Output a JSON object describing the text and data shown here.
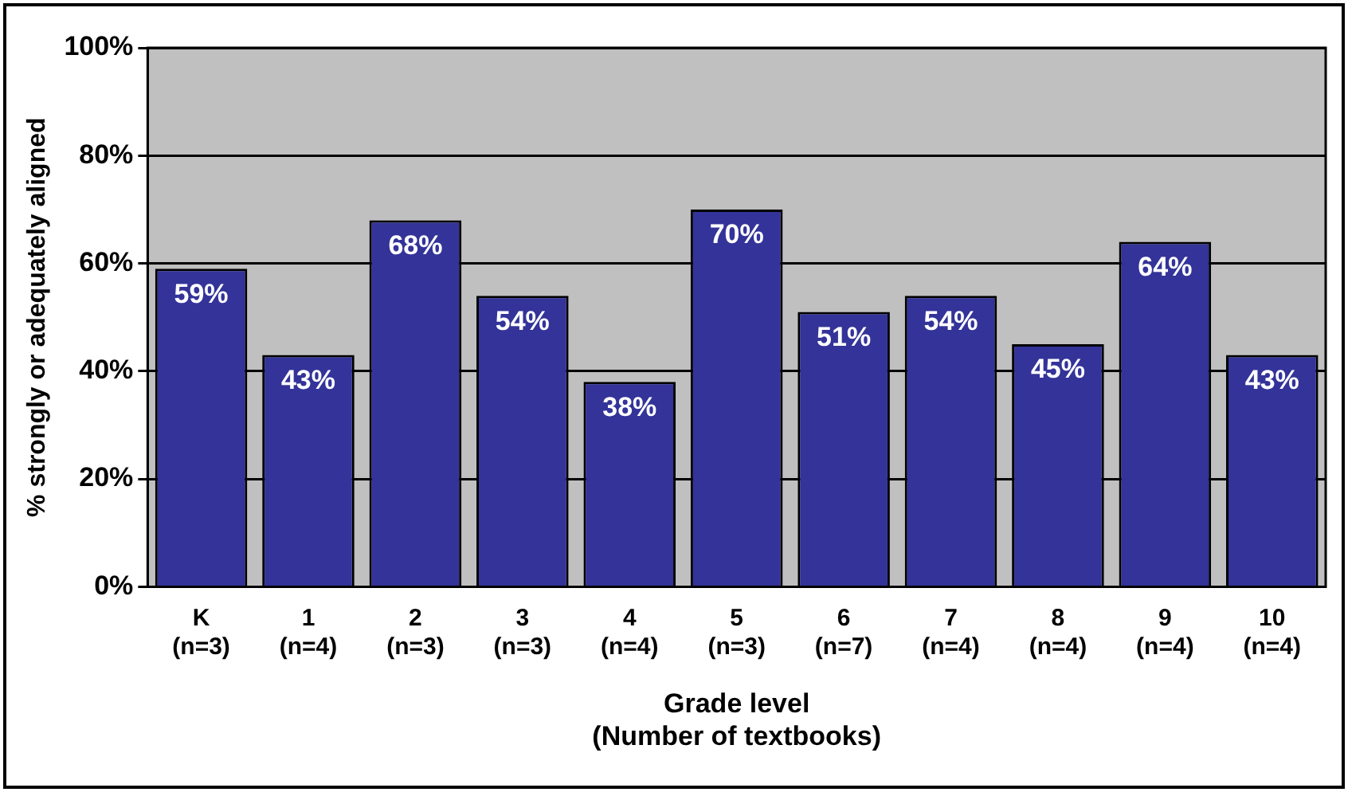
{
  "chart_data": {
    "type": "bar",
    "xlabel": "Grade level\n(Number of textbooks)",
    "ylabel": "% strongly or adequately aligned",
    "categories": [
      "K\n(n=3)",
      "1\n(n=4)",
      "2\n(n=3)",
      "3\n(n=3)",
      "4\n(n=4)",
      "5\n(n=3)",
      "6\n(n=7)",
      "7\n(n=4)",
      "8\n(n=4)",
      "9\n(n=4)",
      "10\n(n=4)"
    ],
    "values": [
      59,
      43,
      68,
      54,
      38,
      70,
      51,
      54,
      45,
      64,
      43
    ],
    "value_labels": [
      "59%",
      "43%",
      "68%",
      "54%",
      "38%",
      "70%",
      "51%",
      "54%",
      "45%",
      "64%",
      "43%"
    ],
    "color": "#333399",
    "ylim": [
      0,
      100
    ],
    "yticks": [
      {
        "value": 0,
        "label": "0%"
      },
      {
        "value": 20,
        "label": "20%"
      },
      {
        "value": 40,
        "label": "40%"
      },
      {
        "value": 60,
        "label": "60%"
      },
      {
        "value": 80,
        "label": "80%"
      },
      {
        "value": 100,
        "label": "100%"
      }
    ],
    "grid": "y",
    "legend": false
  }
}
